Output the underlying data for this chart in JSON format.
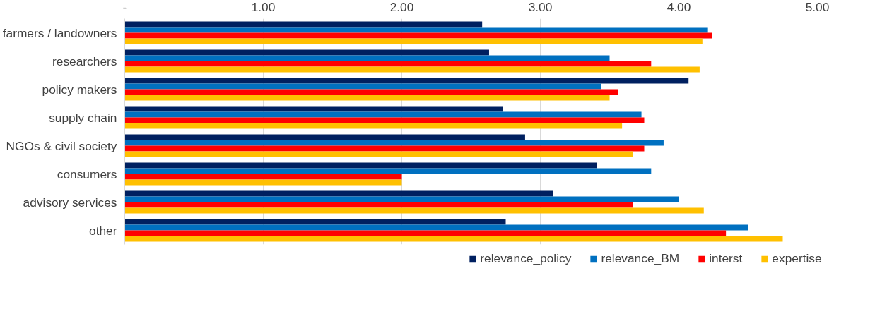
{
  "chart_data": {
    "type": "bar",
    "orientation": "horizontal",
    "categories": [
      "farmers / landowners",
      "researchers",
      "policy makers",
      "supply chain",
      "NGOs & civil society",
      "consumers",
      "advisory services",
      "other"
    ],
    "series": [
      {
        "name": "relevance_policy",
        "color": "#002060",
        "values": [
          2.58,
          2.63,
          4.07,
          2.73,
          2.89,
          3.41,
          3.09,
          2.75
        ]
      },
      {
        "name": "relevance_BM",
        "color": "#0070c0",
        "values": [
          4.21,
          3.5,
          3.44,
          3.73,
          3.89,
          3.8,
          4.0,
          4.5
        ]
      },
      {
        "name": "interst",
        "color": "#ff0000",
        "values": [
          4.24,
          3.8,
          3.56,
          3.75,
          3.75,
          2.0,
          3.67,
          4.34
        ]
      },
      {
        "name": "expertise",
        "color": "#ffc000",
        "values": [
          4.17,
          4.15,
          3.5,
          3.59,
          3.67,
          2.0,
          4.18,
          4.75
        ]
      }
    ],
    "xlim": [
      0,
      5
    ],
    "xticks": [
      {
        "value": 0,
        "label": "-"
      },
      {
        "value": 1,
        "label": "1.00"
      },
      {
        "value": 2,
        "label": "2.00"
      },
      {
        "value": 3,
        "label": "3.00"
      },
      {
        "value": 4,
        "label": "4.00"
      },
      {
        "value": 5,
        "label": "5.00"
      }
    ],
    "grid": "x",
    "legend": "bottom"
  }
}
